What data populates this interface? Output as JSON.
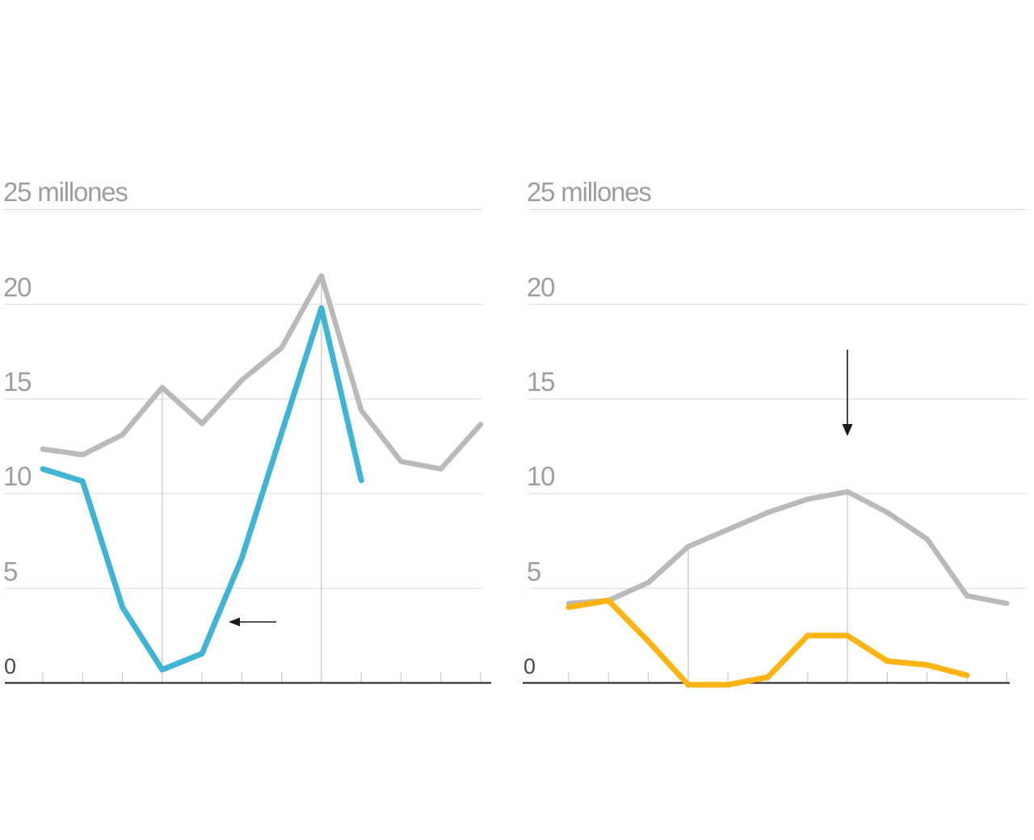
{
  "page": {
    "background": "#ffffff"
  },
  "chart_data": [
    {
      "type": "line",
      "title": "",
      "unit_label": "25 millones",
      "y_tick_labels": [
        "20",
        "15",
        "10",
        "5",
        "0"
      ],
      "y_gridline_values": [
        25,
        20,
        15,
        10,
        5
      ],
      "ylim": [
        0,
        25
      ],
      "x_tick_count": 12,
      "grid": "horizontal",
      "legend": "none",
      "series": [
        {
          "name": "gray-total",
          "color": "#bababa",
          "width": 6.5,
          "values": [
            12.35,
            12.05,
            13.1,
            15.6,
            13.7,
            16.0,
            17.7,
            21.5,
            14.4,
            11.7,
            11.3,
            13.65
          ]
        },
        {
          "name": "blue-highlight",
          "color": "#3fb4d4",
          "width": 7,
          "values": [
            11.3,
            10.65,
            4.0,
            0.7,
            1.55,
            6.6,
            13.2,
            19.8,
            10.7
          ]
        }
      ],
      "dropline_indices": [
        3,
        7
      ],
      "annotations": [
        {
          "kind": "arrow-left"
        }
      ]
    },
    {
      "type": "line",
      "title": "",
      "unit_label": "25 millones",
      "y_tick_labels": [
        "20",
        "15",
        "10",
        "5",
        "0"
      ],
      "y_gridline_values": [
        25,
        20,
        15,
        10,
        5
      ],
      "ylim": [
        0,
        25
      ],
      "x_tick_count": 12,
      "grid": "horizontal",
      "legend": "none",
      "series": [
        {
          "name": "gray-total",
          "color": "#bababa",
          "width": 6.5,
          "values": [
            4.2,
            4.35,
            5.3,
            7.2,
            8.1,
            9.0,
            9.7,
            10.1,
            9.0,
            7.6,
            4.6,
            4.2
          ]
        },
        {
          "name": "yellow-highlight",
          "color": "#fdb413",
          "width": 7,
          "values": [
            4.0,
            4.35,
            2.2,
            -0.1,
            -0.1,
            0.3,
            2.5,
            2.5,
            1.15,
            0.95,
            0.4
          ]
        }
      ],
      "dropline_indices": [
        3,
        7
      ],
      "annotations": [
        {
          "kind": "arrow-down"
        }
      ]
    }
  ],
  "colors": {
    "gridline": "#d9d9d9",
    "dropline": "#c6c6c6",
    "tick": "#c9c9c9",
    "axis": "#222222",
    "label": "#9e9e9e",
    "zero_label": "#4a4a4a",
    "arrow": "#1a1a1a"
  }
}
